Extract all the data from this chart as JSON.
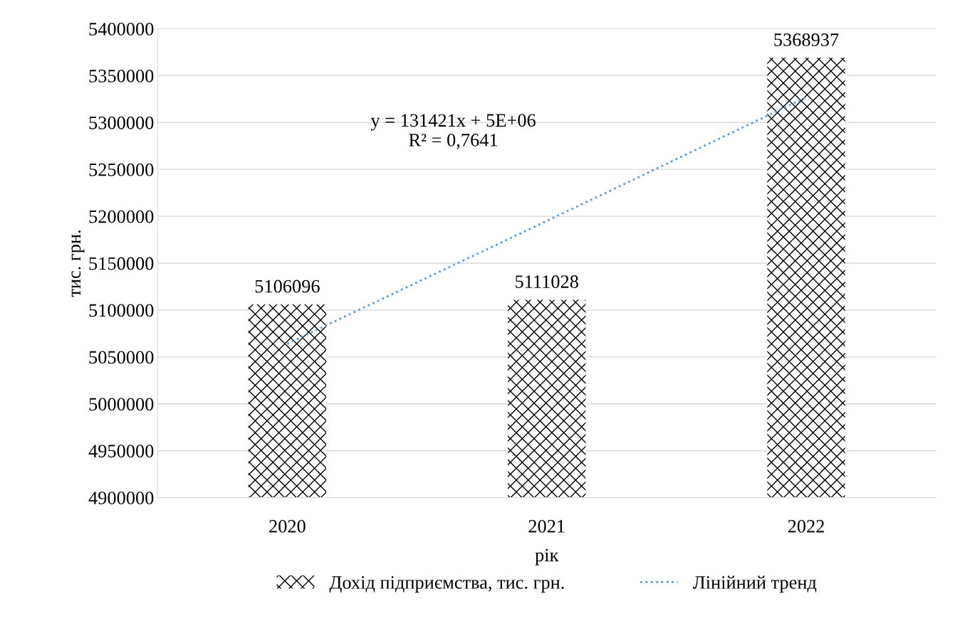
{
  "chart_data": {
    "type": "bar",
    "xlabel": "рік",
    "ylabel": "тис. грн.",
    "categories": [
      "2020",
      "2021",
      "2022"
    ],
    "series": [
      {
        "name": "Дохід підприємства, тис. грн.",
        "color": "#000000",
        "values": [
          5106096,
          5111028,
          5368937
        ],
        "data_labels": true
      },
      {
        "name": "Лінійний тренд",
        "type": "line",
        "color": "#5b9bd5",
        "line_style": "dotted",
        "values": [
          5064000,
          5195000,
          5327000
        ]
      }
    ],
    "annotations": [
      "y = 131421x + 5E+06\nR² = 0,7641"
    ],
    "ylim": [
      4900000,
      5400000
    ],
    "yticks": [
      4900000,
      4950000,
      5000000,
      5050000,
      5100000,
      5150000,
      5200000,
      5250000,
      5300000,
      5350000,
      5400000
    ],
    "grid": "y",
    "legend": "bottom"
  }
}
